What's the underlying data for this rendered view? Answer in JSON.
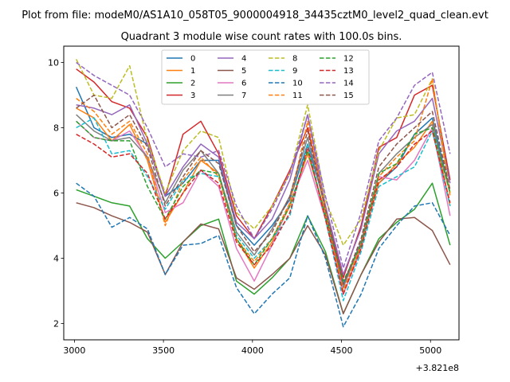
{
  "chart_data": {
    "type": "line",
    "suptitle": "Plot from file: modeM0/AS1A10_058T05_9000004918_34435cztM0_level2_quad_clean.evt",
    "title": "Quadrant 3 module wise count rates with 100.0s bins.",
    "xlabel": "",
    "ylabel": "",
    "x_offset_label": "+3.821e8",
    "xlim": [
      2940,
      5160
    ],
    "ylim": [
      1.5,
      10.5
    ],
    "xticks": [
      3000,
      3500,
      4000,
      4500,
      5000
    ],
    "xtick_labels": [
      "3000",
      "3500",
      "4000",
      "4500",
      "5000"
    ],
    "yticks": [
      2,
      4,
      6,
      8,
      10
    ],
    "ytick_labels": [
      "2",
      "4",
      "6",
      "8",
      "10"
    ],
    "legend_position": "top-center",
    "legend_columns": 4,
    "x": [
      3010,
      3110,
      3210,
      3310,
      3410,
      3510,
      3610,
      3710,
      3810,
      3910,
      4010,
      4110,
      4210,
      4310,
      4410,
      4510,
      4610,
      4710,
      4810,
      4910,
      5010,
      5110
    ],
    "series": [
      {
        "name": "0",
        "color": "#1f77b4",
        "dash": "solid",
        "values": [
          9.25,
          8.0,
          7.7,
          7.8,
          7.5,
          5.9,
          6.3,
          7.0,
          7.0,
          5.0,
          4.4,
          5.0,
          5.8,
          7.5,
          5.6,
          3.2,
          4.5,
          6.3,
          6.8,
          7.8,
          8.3,
          6.0
        ]
      },
      {
        "name": "1",
        "color": "#ff7f0e",
        "dash": "solid",
        "values": [
          8.6,
          8.3,
          7.6,
          8.1,
          7.0,
          5.1,
          6.0,
          7.0,
          6.6,
          4.6,
          3.7,
          4.5,
          5.6,
          7.2,
          5.4,
          2.9,
          4.4,
          6.3,
          6.9,
          7.4,
          8.2,
          5.6
        ]
      },
      {
        "name": "2",
        "color": "#2ca02c",
        "dash": "solid",
        "values": [
          6.1,
          5.9,
          5.7,
          5.6,
          4.6,
          4.0,
          4.5,
          5.0,
          5.2,
          3.3,
          2.9,
          3.4,
          4.0,
          5.3,
          4.2,
          2.3,
          3.5,
          4.6,
          5.1,
          5.5,
          6.3,
          4.4
        ]
      },
      {
        "name": "3",
        "color": "#d62728",
        "dash": "solid",
        "values": [
          9.8,
          9.4,
          8.8,
          8.6,
          7.7,
          5.9,
          7.8,
          8.2,
          7.2,
          5.3,
          4.6,
          5.6,
          6.7,
          8.0,
          5.6,
          3.4,
          5.0,
          7.4,
          7.7,
          9.0,
          9.3,
          6.4
        ]
      },
      {
        "name": "4",
        "color": "#9467bd",
        "dash": "solid",
        "values": [
          8.7,
          8.6,
          8.4,
          8.7,
          7.5,
          5.9,
          6.8,
          7.5,
          7.1,
          5.1,
          4.6,
          5.2,
          6.4,
          8.4,
          5.6,
          3.5,
          4.9,
          7.2,
          7.9,
          8.2,
          8.9,
          6.3
        ]
      },
      {
        "name": "5",
        "color": "#8c564b",
        "dash": "solid",
        "values": [
          5.7,
          5.55,
          5.3,
          5.1,
          4.8,
          3.5,
          4.5,
          5.05,
          4.9,
          3.4,
          3.05,
          3.5,
          4.0,
          5.0,
          4.1,
          2.3,
          3.5,
          4.5,
          5.2,
          5.25,
          4.85,
          3.8
        ]
      },
      {
        "name": "6",
        "color": "#e377c2",
        "dash": "solid",
        "values": [
          8.2,
          7.7,
          7.6,
          7.9,
          7.1,
          5.4,
          5.7,
          6.7,
          6.2,
          4.3,
          3.3,
          4.4,
          5.7,
          7.0,
          5.2,
          2.9,
          4.3,
          6.5,
          6.4,
          7.0,
          8.0,
          5.3
        ]
      },
      {
        "name": "7",
        "color": "#7f7f7f",
        "dash": "solid",
        "values": [
          8.4,
          7.9,
          7.6,
          7.7,
          7.1,
          5.7,
          6.7,
          7.3,
          6.6,
          4.8,
          4.1,
          4.9,
          5.9,
          7.7,
          5.5,
          3.1,
          4.5,
          6.6,
          7.2,
          7.7,
          8.1,
          6.0
        ]
      },
      {
        "name": "8",
        "color": "#bcbd22",
        "dash": "dashed",
        "values": [
          10.1,
          9.0,
          8.9,
          9.9,
          7.6,
          6.0,
          7.3,
          7.9,
          7.7,
          5.4,
          4.9,
          5.6,
          6.6,
          8.7,
          5.8,
          4.4,
          5.2,
          7.3,
          8.3,
          8.4,
          9.5,
          6.0
        ]
      },
      {
        "name": "9",
        "color": "#17becf",
        "dash": "dashed",
        "values": [
          8.0,
          8.3,
          7.2,
          7.3,
          6.5,
          5.5,
          6.4,
          6.6,
          6.5,
          4.7,
          4.0,
          4.6,
          5.3,
          7.5,
          5.2,
          2.7,
          4.2,
          6.2,
          6.5,
          6.8,
          7.9,
          5.6
        ]
      },
      {
        "name": "10",
        "color": "#1f77b4",
        "dash": "dashed",
        "values": [
          6.3,
          5.9,
          4.95,
          5.25,
          4.9,
          3.5,
          4.4,
          4.45,
          4.7,
          3.1,
          2.3,
          2.9,
          3.4,
          5.3,
          4.0,
          1.9,
          2.9,
          4.3,
          5.0,
          5.6,
          5.7,
          4.7
        ]
      },
      {
        "name": "11",
        "color": "#ff7f0e",
        "dash": "dashed",
        "values": [
          8.9,
          8.5,
          7.8,
          8.2,
          7.2,
          5.0,
          6.4,
          7.1,
          6.5,
          4.6,
          3.9,
          4.6,
          5.7,
          8.2,
          5.5,
          3.0,
          4.4,
          6.5,
          7.1,
          7.6,
          9.5,
          5.9
        ]
      },
      {
        "name": "12",
        "color": "#2ca02c",
        "dash": "dashed",
        "values": [
          8.2,
          7.7,
          7.6,
          7.6,
          6.2,
          5.2,
          6.2,
          6.7,
          6.6,
          4.6,
          3.8,
          4.6,
          5.6,
          7.3,
          5.3,
          3.3,
          4.4,
          6.6,
          6.9,
          7.8,
          8.0,
          6.0
        ]
      },
      {
        "name": "13",
        "color": "#d62728",
        "dash": "dashed",
        "values": [
          7.8,
          7.5,
          7.1,
          7.2,
          6.6,
          5.2,
          6.0,
          6.7,
          6.3,
          4.5,
          3.8,
          4.4,
          5.4,
          7.4,
          5.2,
          2.9,
          4.3,
          6.4,
          6.8,
          7.5,
          7.9,
          5.7
        ]
      },
      {
        "name": "14",
        "color": "#9467bd",
        "dash": "dashed",
        "values": [
          10.0,
          9.6,
          9.3,
          9.0,
          8.0,
          6.8,
          7.2,
          7.1,
          7.3,
          5.6,
          4.6,
          5.5,
          6.6,
          8.4,
          5.9,
          3.7,
          5.4,
          7.6,
          8.3,
          9.3,
          9.7,
          7.2
        ]
      },
      {
        "name": "15",
        "color": "#8c564b",
        "dash": "dashed",
        "values": [
          8.6,
          9.0,
          8.0,
          8.4,
          7.4,
          5.6,
          6.5,
          7.3,
          6.9,
          5.0,
          4.2,
          4.8,
          5.9,
          7.9,
          5.5,
          3.2,
          4.6,
          6.8,
          7.5,
          8.0,
          8.5,
          6.1
        ]
      }
    ]
  }
}
